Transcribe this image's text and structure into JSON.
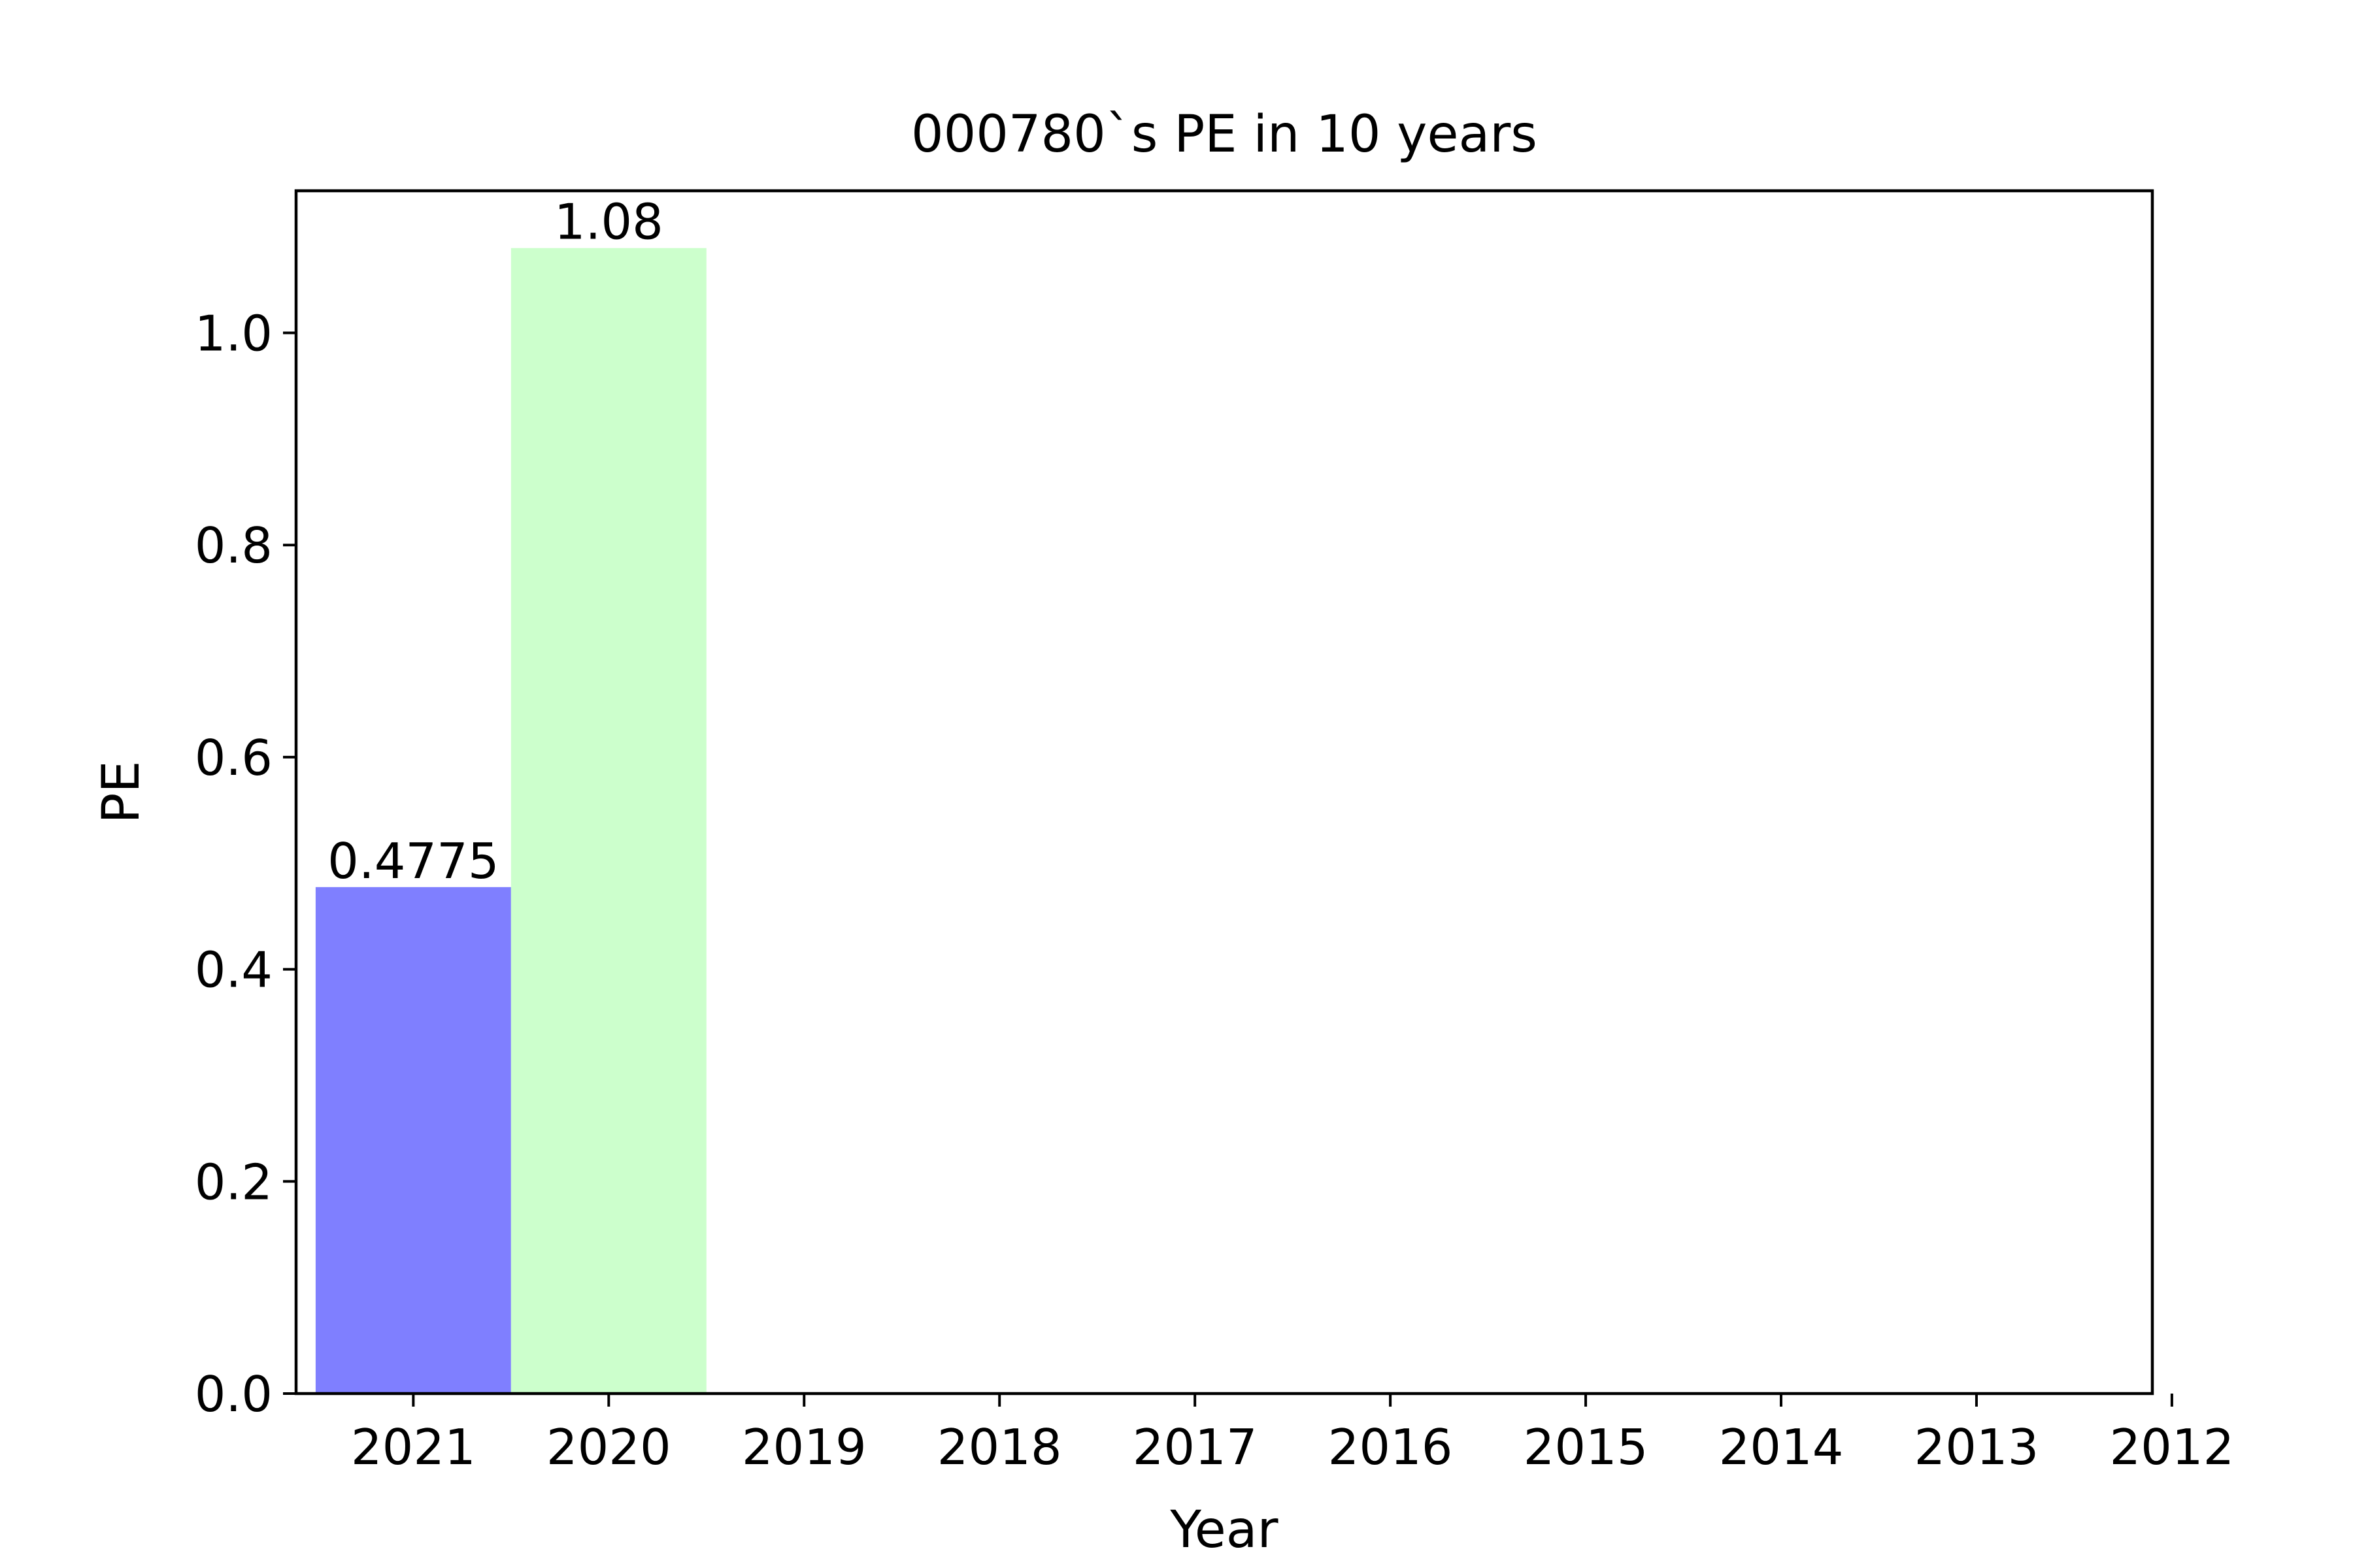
{
  "chart_data": {
    "type": "bar",
    "title": "000780`s PE in 10 years",
    "xlabel": "Year",
    "ylabel": "PE",
    "categories": [
      "2021",
      "2020",
      "2019",
      "2018",
      "2017",
      "2016",
      "2015",
      "2014",
      "2013",
      "2012"
    ],
    "values": [
      0.4775,
      1.08,
      null,
      null,
      null,
      null,
      null,
      null,
      null,
      null
    ],
    "value_labels": [
      "0.4775",
      "1.08",
      "",
      "",
      "",
      "",
      "",
      "",
      "",
      ""
    ],
    "bar_colors": [
      "#7f7fff",
      "#ccffcc"
    ],
    "ylim": [
      0,
      1.134
    ],
    "yticks": [
      0.0,
      0.2,
      0.4,
      0.6,
      0.8,
      1.0
    ],
    "ytick_labels": [
      "0.0",
      "0.2",
      "0.4",
      "0.6",
      "0.8",
      "1.0"
    ],
    "grid": false,
    "legend": "none"
  }
}
